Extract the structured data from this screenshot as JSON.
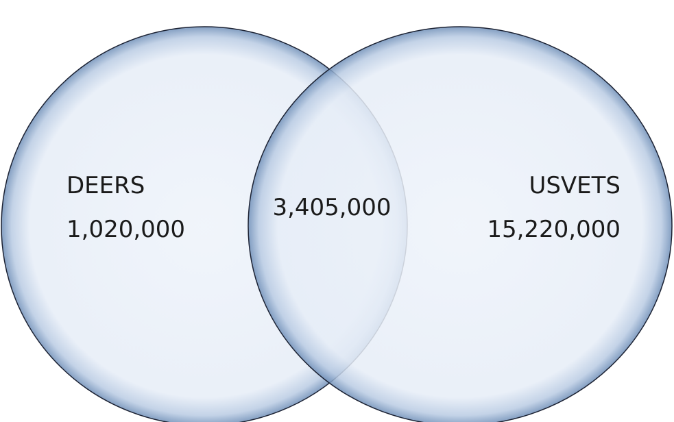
{
  "sets": [
    {
      "label": "DEERS",
      "count": "1,020,000"
    },
    {
      "label": "USVETS",
      "count": "15,220,000"
    }
  ],
  "intersection": {
    "count": "3,405,000"
  }
}
